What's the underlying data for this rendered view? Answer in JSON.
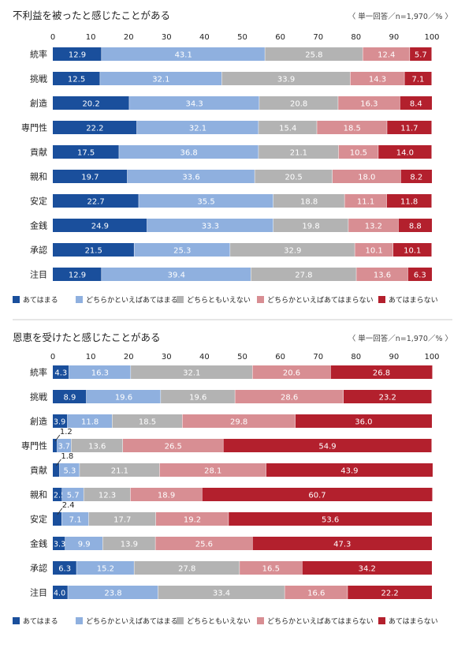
{
  "colors": {
    "s1": "#1a4f9c",
    "s2": "#8fb0df",
    "s3": "#b3b3b3",
    "s4": "#d88e93",
    "s5": "#b3202d",
    "divider": "#cccccc",
    "text": "#222222"
  },
  "chart_data": [
    {
      "type": "bar",
      "orientation": "horizontal",
      "stacked": true,
      "title": "不利益を被ったと感じたことがある",
      "note": "〈 単一回答／n=1,970／% 〉",
      "xlim": [
        0,
        100
      ],
      "xticks": [
        "0",
        "10",
        "20",
        "30",
        "40",
        "50",
        "60",
        "70",
        "80",
        "90",
        "100"
      ],
      "categories": [
        "統率",
        "挑戦",
        "創造",
        "専門性",
        "貢献",
        "親和",
        "安定",
        "金銭",
        "承認",
        "注目"
      ],
      "series": [
        {
          "name": "あてはまる",
          "values": [
            12.9,
            12.5,
            20.2,
            22.2,
            17.5,
            19.7,
            22.7,
            24.9,
            21.5,
            12.9
          ]
        },
        {
          "name": "どちらかといえばあてはまる",
          "values": [
            43.1,
            32.1,
            34.3,
            32.1,
            36.8,
            33.6,
            35.5,
            33.3,
            25.3,
            39.4
          ]
        },
        {
          "name": "どちらともいえない",
          "values": [
            25.8,
            33.9,
            20.8,
            15.4,
            21.1,
            20.5,
            18.8,
            19.8,
            32.9,
            27.8
          ]
        },
        {
          "name": "どちらかといえばあてはまらない",
          "values": [
            12.4,
            14.3,
            16.3,
            18.5,
            10.5,
            18.0,
            11.1,
            13.2,
            10.1,
            13.6
          ]
        },
        {
          "name": "あてはまらない",
          "values": [
            5.7,
            7.1,
            8.4,
            11.7,
            14.0,
            8.2,
            11.8,
            8.8,
            10.1,
            6.3
          ]
        }
      ],
      "legend": "bottom"
    },
    {
      "type": "bar",
      "orientation": "horizontal",
      "stacked": true,
      "title": "恩恵を受けたと感じたことがある",
      "note": "〈 単一回答／n=1,970／% 〉",
      "xlim": [
        0,
        100
      ],
      "xticks": [
        "0",
        "10",
        "20",
        "30",
        "40",
        "50",
        "60",
        "70",
        "80",
        "90",
        "100"
      ],
      "categories": [
        "統率",
        "挑戦",
        "創造",
        "専門性",
        "貢献",
        "親和",
        "安定",
        "金銭",
        "承認",
        "注目"
      ],
      "series": [
        {
          "name": "あてはまる",
          "values": [
            4.3,
            8.9,
            3.9,
            1.2,
            1.8,
            2.5,
            2.4,
            3.3,
            6.3,
            4.0
          ]
        },
        {
          "name": "どちらかといえばあてはまる",
          "values": [
            16.3,
            19.6,
            11.8,
            3.7,
            5.3,
            5.7,
            7.1,
            9.9,
            15.2,
            23.8
          ]
        },
        {
          "name": "どちらともいえない",
          "values": [
            32.1,
            19.6,
            18.5,
            13.6,
            21.1,
            12.3,
            17.7,
            13.9,
            27.8,
            33.4
          ]
        },
        {
          "name": "どちらかといえばあてはまらない",
          "values": [
            20.6,
            28.6,
            29.8,
            26.5,
            28.1,
            18.9,
            19.2,
            25.6,
            16.5,
            16.6
          ]
        },
        {
          "name": "あてはまらない",
          "values": [
            26.8,
            23.2,
            36.0,
            54.9,
            43.9,
            60.7,
            53.6,
            47.3,
            34.2,
            22.2
          ]
        }
      ],
      "legend": "bottom"
    }
  ]
}
